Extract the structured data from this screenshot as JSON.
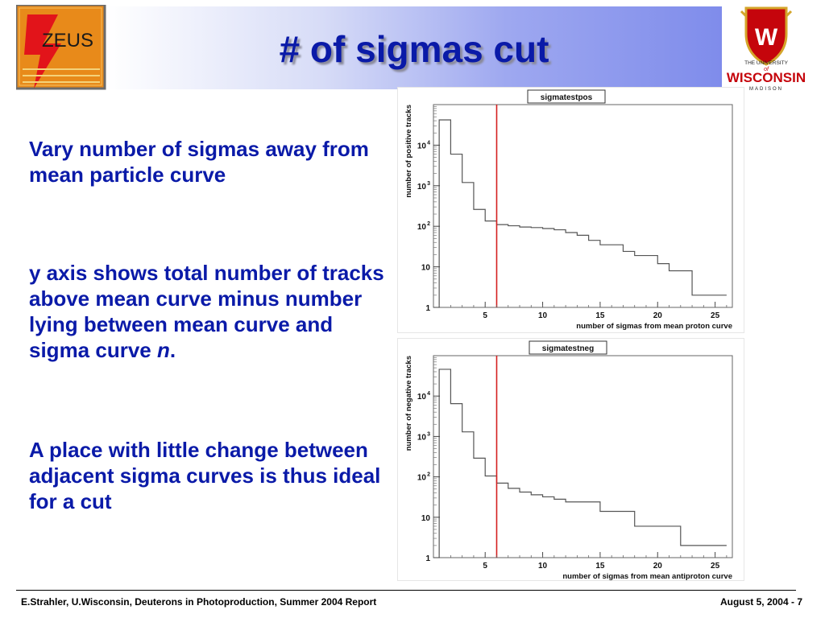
{
  "slide": {
    "title": "# of sigmas cut",
    "logo_left_text": "ZEUS",
    "logo_right": {
      "line1": "THE UNIVERSITY",
      "line2": "of",
      "line3": "WISCONSIN",
      "line4": "MADISON",
      "crest_letter": "W"
    },
    "bullets": [
      {
        "text": "Vary number of sigmas away from mean particle curve"
      },
      {
        "text": "y axis shows total number of tracks above mean curve minus number lying between mean curve and sigma curve ",
        "emph": "n",
        "tail": "."
      },
      {
        "text": "A place with little change between adjacent sigma curves is thus ideal for a cut"
      }
    ],
    "footer_left": "E.Strahler, U.Wisconsin, Deuterons in Photoproduction, Summer 2004 Report",
    "footer_right": "August 5, 2004  -  7",
    "colors": {
      "title": "#0a1aa8",
      "text": "#0a1aa8",
      "cut_line": "#d42020",
      "hist": "#555555"
    }
  },
  "chart_data": [
    {
      "type": "step-histogram",
      "title": "sigmatestpos",
      "xlabel": "number of sigmas from mean proton curve",
      "ylabel": "number of positive tracks",
      "yscale": "log",
      "xlim": [
        0.5,
        26.5
      ],
      "ylim": [
        1,
        100000
      ],
      "xticks": [
        5,
        10,
        15,
        20,
        25
      ],
      "yticks": [
        {
          "v": 1,
          "label": "1"
        },
        {
          "v": 10,
          "label": "10"
        },
        {
          "v": 100,
          "label": "10",
          "exp": "2"
        },
        {
          "v": 1000,
          "label": "10",
          "exp": "3"
        },
        {
          "v": 10000,
          "label": "10",
          "exp": "4"
        }
      ],
      "cut_x": 6,
      "bin_edges": [
        1,
        2,
        3,
        4,
        5,
        6,
        7,
        8,
        9,
        10,
        11,
        12,
        13,
        14,
        15,
        16,
        17,
        18,
        19,
        20,
        21,
        22,
        23,
        24,
        25,
        26
      ],
      "values": [
        42000,
        6000,
        1200,
        260,
        135,
        110,
        103,
        96,
        93,
        88,
        82,
        70,
        60,
        45,
        35,
        35,
        24,
        19,
        19,
        12,
        8,
        8,
        2,
        2,
        2
      ]
    },
    {
      "type": "step-histogram",
      "title": "sigmatestneg",
      "xlabel": "number of sigmas from mean antiproton curve",
      "ylabel": "number of negative tracks",
      "yscale": "log",
      "xlim": [
        0.5,
        26.5
      ],
      "ylim": [
        1,
        100000
      ],
      "xticks": [
        5,
        10,
        15,
        20,
        25
      ],
      "yticks": [
        {
          "v": 1,
          "label": "1"
        },
        {
          "v": 10,
          "label": "10"
        },
        {
          "v": 100,
          "label": "10",
          "exp": "2"
        },
        {
          "v": 1000,
          "label": "10",
          "exp": "3"
        },
        {
          "v": 10000,
          "label": "10",
          "exp": "4"
        }
      ],
      "cut_x": 6,
      "bin_edges": [
        1,
        2,
        3,
        4,
        5,
        6,
        7,
        8,
        9,
        10,
        11,
        12,
        13,
        14,
        15,
        16,
        17,
        18,
        19,
        20,
        21,
        22,
        23,
        24,
        25,
        26
      ],
      "values": [
        46000,
        6500,
        1300,
        290,
        105,
        70,
        52,
        42,
        36,
        32,
        28,
        24,
        24,
        24,
        14,
        14,
        14,
        6,
        6,
        6,
        6,
        2,
        2,
        2,
        2
      ]
    }
  ]
}
